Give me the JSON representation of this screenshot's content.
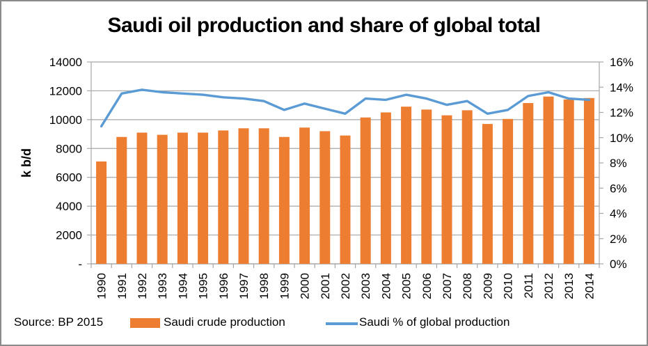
{
  "chart_data": {
    "type": "bar",
    "title": "Saudi oil production and share of global total",
    "source": "Source: BP 2015",
    "categories": [
      "1990",
      "1991",
      "1992",
      "1993",
      "1994",
      "1995",
      "1996",
      "1997",
      "1998",
      "1999",
      "2000",
      "2001",
      "2002",
      "2003",
      "2004",
      "2005",
      "2006",
      "2007",
      "2008",
      "2009",
      "2010",
      "2011",
      "2012",
      "2013",
      "2014"
    ],
    "series": [
      {
        "name": "Saudi crude production",
        "type": "bar",
        "axis": "left",
        "color": "#ED7D31",
        "values": [
          7100,
          8800,
          9100,
          8950,
          9100,
          9100,
          9250,
          9400,
          9400,
          8800,
          9450,
          9200,
          8900,
          10150,
          10500,
          10900,
          10700,
          10300,
          10650,
          9700,
          10050,
          11150,
          11600,
          11400,
          11500
        ]
      },
      {
        "name": "Saudi % of global production",
        "type": "line",
        "axis": "right",
        "color": "#5B9BD5",
        "values": [
          10.9,
          13.5,
          13.8,
          13.6,
          13.5,
          13.4,
          13.2,
          13.1,
          12.9,
          12.2,
          12.7,
          12.3,
          11.9,
          13.1,
          13.0,
          13.4,
          13.1,
          12.6,
          12.9,
          11.9,
          12.2,
          13.3,
          13.6,
          13.1,
          13.0
        ]
      }
    ],
    "left_axis": {
      "title": "k b/d",
      "min": 0,
      "max": 14000,
      "step": 2000,
      "tick_labels": [
        "14000",
        "12000",
        "10000",
        "8000",
        "6000",
        "4000",
        "2000",
        "-"
      ]
    },
    "right_axis": {
      "min": 0,
      "max": 16,
      "step": 2,
      "unit": "%",
      "tick_labels": [
        "16%",
        "14%",
        "12%",
        "10%",
        "8%",
        "6%",
        "4%",
        "2%",
        "0%"
      ]
    },
    "grid": true,
    "legend_position": "bottom",
    "colors": {
      "gridline": "#A6A6A6",
      "axis_line": "#A6A6A6",
      "text": "#000000"
    }
  }
}
